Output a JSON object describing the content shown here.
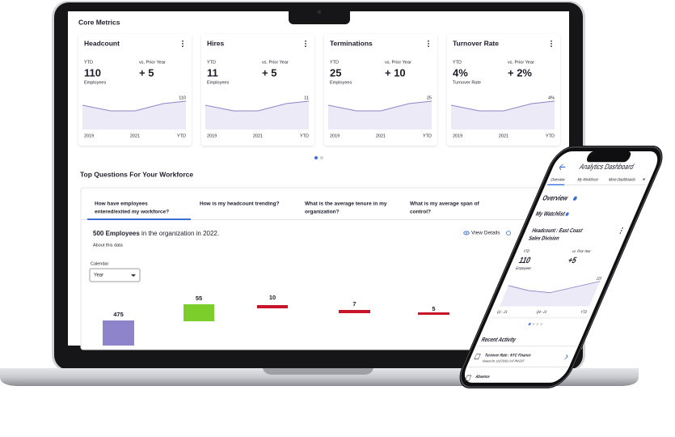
{
  "laptop": {
    "section_title": "Core Metrics",
    "cards": [
      {
        "title": "Headcount",
        "ytd_label": "YTD",
        "prior_label": "vs. Prior Year",
        "value": "110",
        "change": "+ 5",
        "unit": "Employees",
        "end_label": "110",
        "x_labels": [
          "2019",
          "2021",
          "YTD"
        ]
      },
      {
        "title": "Hires",
        "ytd_label": "YTD",
        "prior_label": "vs. Prior Year",
        "value": "11",
        "change": "+ 5",
        "unit": "Employees",
        "end_label": "11",
        "x_labels": [
          "2019",
          "2021",
          "YTD"
        ]
      },
      {
        "title": "Terminations",
        "ytd_label": "YTD",
        "prior_label": "vs. Prior Year",
        "value": "25",
        "change": "+ 10",
        "unit": "Employees",
        "end_label": "25",
        "x_labels": [
          "2019",
          "2021",
          "YTD"
        ]
      },
      {
        "title": "Turnover Rate",
        "ytd_label": "YTD",
        "prior_label": "vs. Prior Year",
        "value": "4%",
        "change": "+ 2%",
        "unit": "Turnover Rate",
        "end_label": "4%",
        "x_labels": [
          "2019",
          "2021",
          "YTD"
        ]
      }
    ],
    "questions": {
      "title": "Top Questions For Your Workforce",
      "tabs": [
        [
          "How have employees",
          "entered/exited my workforce?"
        ],
        [
          "How is my headcount trending?"
        ],
        [
          "What is the average tenure in my",
          "organization?"
        ],
        [
          "What is my average span of",
          "control?"
        ]
      ],
      "summary_bold": "500 Employees",
      "summary_rest": " in the organization in 2022.",
      "about": "About this data",
      "view_details": "View Details",
      "calendar_label": "Calendar",
      "select_value": "Year",
      "bar_labels": [
        "475",
        "55",
        "10",
        "7",
        "5"
      ]
    }
  },
  "phone": {
    "title": "Analytics Dashboard",
    "tabs": [
      "Overview",
      "My Workforce",
      "More Dashboards"
    ],
    "overview": "Overview",
    "watchlist": "My Watchlist",
    "card": {
      "title": [
        "Headcount : East Coast",
        "Sales Division"
      ],
      "ytd_label": "YTD",
      "prior_label": "vs. Prior Year",
      "value": "110",
      "change": "+5",
      "unit": "Employees",
      "end_label": "110",
      "x_labels": [
        "Q1 - 21",
        "Q4 - 21",
        "YTD"
      ]
    },
    "recent_title": "Recent Activity",
    "activities": [
      {
        "title": "Turnover Rate : NYC Finance",
        "detail": "Viewed On: 12/27/2021 3:47 PM EST"
      },
      {
        "title": "Absence"
      }
    ]
  }
}
